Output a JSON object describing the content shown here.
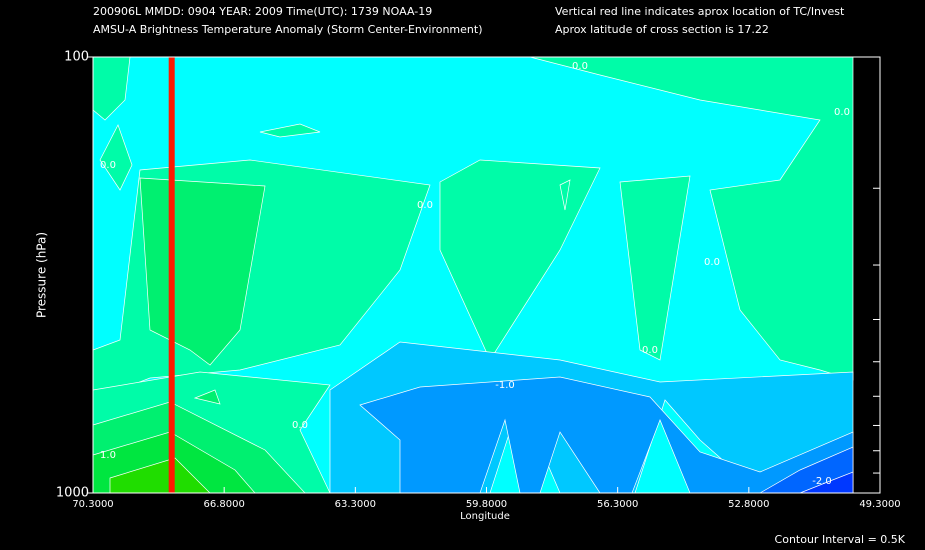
{
  "chart_data": {
    "type": "contour",
    "header": [
      "200906L  MMDD: 0904 YEAR: 2009 Time(UTC): 1739 NOAA-19",
      "AMSU-A Brightness Temperature Anomaly (Storm Center-Environment)"
    ],
    "notes": [
      "Vertical red line indicates aprox location of TC/Invest",
      "Aprox latitude of cross section is 17.22"
    ],
    "xlabel": "Longitude",
    "ylabel": "Pressure (hPa)",
    "footer": "Contour Interval = 0.5K",
    "xlim": [
      70.3,
      49.3
    ],
    "xticks": [
      {
        "value": 70.3,
        "label": "70.3000"
      },
      {
        "value": 66.8,
        "label": "66.8000"
      },
      {
        "value": 63.3,
        "label": "63.3000"
      },
      {
        "value": 59.8,
        "label": "59.8000"
      },
      {
        "value": 56.3,
        "label": "56.3000"
      },
      {
        "value": 52.8,
        "label": "52.8000"
      },
      {
        "value": 49.3,
        "label": "49.3000"
      }
    ],
    "ylim": [
      100,
      1000
    ],
    "yscale": "log",
    "yticks": [
      100,
      1000
    ],
    "yminor_ticks": [
      200,
      300,
      400,
      500,
      600,
      700,
      800,
      900
    ],
    "tc_longitude": 68.2,
    "tc_line_color": "#ff1a00",
    "bands": [
      {
        "range": [
          -0.5,
          0
        ],
        "color": "#00ffff"
      },
      {
        "range": [
          0,
          0.5
        ],
        "color": "#00fca8"
      },
      {
        "range": [
          0.5,
          1
        ],
        "color": "#00f070"
      },
      {
        "range": [
          1,
          1.5
        ],
        "color": "#00e640"
      },
      {
        "range": [
          1.5,
          2
        ],
        "color": "#20dd00"
      },
      {
        "range": [
          -1,
          -0.5
        ],
        "color": "#00c8ff"
      },
      {
        "range": [
          -1.5,
          -1
        ],
        "color": "#0099ff"
      },
      {
        "range": [
          -2,
          -1.5
        ],
        "color": "#0066ff"
      },
      {
        "range": [
          -2.5,
          -2
        ],
        "color": "#0038ff"
      }
    ],
    "contour_labels": [
      "0.0",
      "0.0",
      "0.0",
      "0.0",
      "0.0",
      "0.0",
      "0.0",
      "-1.0",
      "-2.0",
      "1.0"
    ]
  }
}
